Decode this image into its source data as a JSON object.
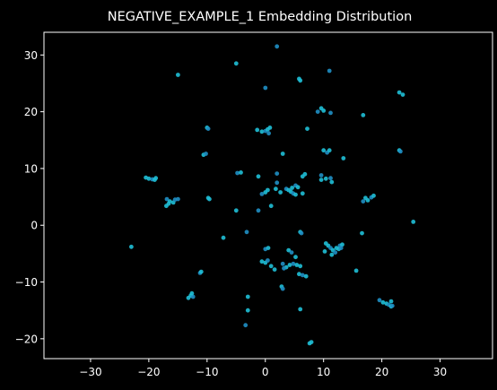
{
  "chart_data": {
    "type": "scatter",
    "title": "NEGATIVE_EXAMPLE_1 Embedding Distribution",
    "xlabel": "",
    "ylabel": "",
    "xlim": [
      -38,
      39
    ],
    "ylim": [
      -23.5,
      34
    ],
    "xticks": [
      -30,
      -20,
      -10,
      0,
      10,
      20,
      30
    ],
    "yticks": [
      -20,
      -10,
      0,
      10,
      20,
      30
    ],
    "grid": false,
    "colors": {
      "background": "#000000",
      "axes": "#ffffff",
      "point_light": "#1fbfd6",
      "point_dark": "#1f8fc4"
    },
    "points": [
      [
        2,
        31.5
      ],
      [
        -15,
        26.5
      ],
      [
        -5,
        28.5
      ],
      [
        11,
        27.2
      ],
      [
        5.8,
        25.8
      ],
      [
        6,
        25.5
      ],
      [
        0,
        24.2
      ],
      [
        23,
        23.4
      ],
      [
        23.6,
        23
      ],
      [
        9,
        20
      ],
      [
        9.6,
        20.6
      ],
      [
        10,
        20.2
      ],
      [
        11.2,
        19.8
      ],
      [
        16.8,
        19.4
      ],
      [
        -10,
        17.2
      ],
      [
        -9.8,
        17
      ],
      [
        -1.4,
        16.8
      ],
      [
        -0.6,
        16.5
      ],
      [
        0,
        16.6
      ],
      [
        0.4,
        16.9
      ],
      [
        0.8,
        17.2
      ],
      [
        0.6,
        16.2
      ],
      [
        7.2,
        17
      ],
      [
        -10.6,
        12.4
      ],
      [
        -10.2,
        12.6
      ],
      [
        3,
        12.6
      ],
      [
        10,
        13.2
      ],
      [
        10.6,
        12.8
      ],
      [
        11,
        13.2
      ],
      [
        23,
        13.2
      ],
      [
        23.2,
        13
      ],
      [
        -20.5,
        8.4
      ],
      [
        -20,
        8.2
      ],
      [
        -19.4,
        8.1
      ],
      [
        -18.8,
        8.3
      ],
      [
        -19,
        8
      ],
      [
        -4.8,
        9.2
      ],
      [
        -4.2,
        9.3
      ],
      [
        -1.2,
        8.6
      ],
      [
        2,
        9.1
      ],
      [
        6.4,
        8.6
      ],
      [
        6.8,
        9
      ],
      [
        9.6,
        8.8
      ],
      [
        9.6,
        8
      ],
      [
        10.4,
        8.2
      ],
      [
        11.2,
        8.3
      ],
      [
        11.4,
        7.6
      ],
      [
        13.4,
        11.8
      ],
      [
        5.2,
        7
      ],
      [
        5.6,
        6.7
      ],
      [
        6.4,
        5.6
      ],
      [
        2,
        7.5
      ],
      [
        2.6,
        5.8
      ],
      [
        1.8,
        6.4
      ],
      [
        -0.6,
        5.5
      ],
      [
        0,
        5.8
      ],
      [
        0.4,
        6.2
      ],
      [
        3.6,
        6.4
      ],
      [
        4,
        6.2
      ],
      [
        4.4,
        5.9
      ],
      [
        4.8,
        5.6
      ],
      [
        4.6,
        6.6
      ],
      [
        5.2,
        5.4
      ],
      [
        -16.9,
        4.6
      ],
      [
        -16.4,
        4.2
      ],
      [
        -15.8,
        4
      ],
      [
        -15.5,
        4.5
      ],
      [
        -16.6,
        3.8
      ],
      [
        -17,
        3.4
      ],
      [
        -15,
        4.6
      ],
      [
        -9.8,
        4.8
      ],
      [
        -9.6,
        4.6
      ],
      [
        16.8,
        4.2
      ],
      [
        17.2,
        4.8
      ],
      [
        17.6,
        4.4
      ],
      [
        18.2,
        4.9
      ],
      [
        18.6,
        5.2
      ],
      [
        -5,
        2.6
      ],
      [
        -1.2,
        2.6
      ],
      [
        1,
        3.4
      ],
      [
        25.4,
        0.6
      ],
      [
        -3.2,
        -1.2
      ],
      [
        -7.2,
        -2.2
      ],
      [
        6,
        -1.2
      ],
      [
        6.2,
        -1.4
      ],
      [
        16.6,
        -1.4
      ],
      [
        -23,
        -3.8
      ],
      [
        0,
        -4.2
      ],
      [
        0.5,
        -4
      ],
      [
        4,
        -4.4
      ],
      [
        4.5,
        -4.8
      ],
      [
        10.4,
        -3.2
      ],
      [
        10.8,
        -3.6
      ],
      [
        11.2,
        -4
      ],
      [
        11.6,
        -4.4
      ],
      [
        12.2,
        -4
      ],
      [
        12.8,
        -3.6
      ],
      [
        13.2,
        -3.4
      ],
      [
        10.2,
        -4.6
      ],
      [
        12,
        -4.8
      ],
      [
        12.6,
        -4.2
      ],
      [
        11.4,
        -5.2
      ],
      [
        13,
        -4
      ],
      [
        -0.6,
        -6.4
      ],
      [
        0,
        -6.6
      ],
      [
        0.4,
        -6.2
      ],
      [
        1,
        -7.2
      ],
      [
        1.6,
        -7.8
      ],
      [
        3,
        -6.8
      ],
      [
        3.6,
        -7.4
      ],
      [
        4.2,
        -7
      ],
      [
        4.8,
        -6.8
      ],
      [
        5.4,
        -7
      ],
      [
        6,
        -7.2
      ],
      [
        3.2,
        -7.6
      ],
      [
        5.2,
        -5.6
      ],
      [
        5.8,
        -8.6
      ],
      [
        6.4,
        -8.8
      ],
      [
        7,
        -9
      ],
      [
        15.6,
        -8
      ],
      [
        -11.2,
        -8.4
      ],
      [
        -11,
        -8.2
      ],
      [
        2.8,
        -10.8
      ],
      [
        3,
        -11.2
      ],
      [
        -13.2,
        -12.8
      ],
      [
        -12.8,
        -12.4
      ],
      [
        -12.4,
        -12.6
      ],
      [
        -12.6,
        -12
      ],
      [
        -3,
        -12.6
      ],
      [
        19.6,
        -13.2
      ],
      [
        20.2,
        -13.6
      ],
      [
        20.8,
        -13.8
      ],
      [
        21.2,
        -14
      ],
      [
        21.6,
        -14.3
      ],
      [
        21.6,
        -13.4
      ],
      [
        21.8,
        -14.2
      ],
      [
        -3,
        -15
      ],
      [
        6,
        -14.8
      ],
      [
        -3.4,
        -17.6
      ],
      [
        7.6,
        -20.8
      ],
      [
        7.9,
        -20.6
      ]
    ]
  }
}
